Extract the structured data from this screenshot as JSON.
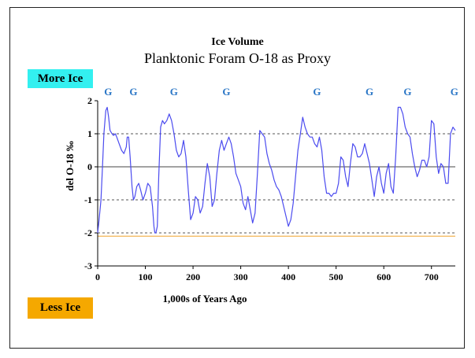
{
  "colors": {
    "more_ice_bg": "#33f0f0",
    "less_ice_bg": "#f5a800",
    "series_line": "#4b4bef",
    "g_marker": "#2a76c6",
    "baseline": "#f4c070"
  },
  "labels": {
    "more_ice": "More Ice",
    "less_ice": "Less Ice"
  },
  "chart_data": {
    "type": "line",
    "title": "Ice Volume",
    "subtitle": "Planktonic Foram O-18 as Proxy",
    "xlabel": "1,000s of Years Ago",
    "ylabel": "del O-18 ‰",
    "xlim": [
      0,
      750
    ],
    "ylim": [
      -3,
      2
    ],
    "xticks": [
      "0",
      "100",
      "200",
      "300",
      "400",
      "500",
      "600",
      "700"
    ],
    "yticks": [
      "2",
      "1",
      "0",
      "-1",
      "-2",
      "-3"
    ],
    "grid": "dashed horizontal at 1, -1, -2",
    "zero_line": 0,
    "reference_line": -2.1,
    "glacial_markers": {
      "label": "G",
      "x": [
        22,
        75,
        160,
        270,
        460,
        570,
        650,
        748
      ]
    },
    "series": [
      {
        "x": [
          0,
          3,
          7,
          10,
          13,
          17,
          20,
          23,
          26,
          30,
          33,
          37,
          40,
          45,
          50,
          55,
          60,
          62,
          65,
          68,
          72,
          75,
          78,
          82,
          86,
          90,
          95,
          100,
          105,
          110,
          115,
          118,
          120,
          122,
          125,
          128,
          132,
          136,
          140,
          145,
          150,
          155,
          160,
          165,
          170,
          175,
          180,
          185,
          190,
          195,
          200,
          205,
          210,
          215,
          220,
          225,
          230,
          235,
          240,
          245,
          250,
          255,
          260,
          265,
          270,
          275,
          280,
          285,
          290,
          295,
          300,
          305,
          310,
          315,
          320,
          325,
          330,
          335,
          340,
          345,
          350,
          355,
          360,
          365,
          370,
          375,
          380,
          385,
          390,
          395,
          400,
          405,
          410,
          415,
          420,
          425,
          430,
          435,
          440,
          445,
          450,
          455,
          460,
          465,
          470,
          475,
          480,
          485,
          490,
          495,
          500,
          505,
          510,
          515,
          520,
          525,
          530,
          535,
          540,
          545,
          550,
          555,
          560,
          565,
          570,
          575,
          580,
          585,
          590,
          595,
          600,
          605,
          610,
          615,
          620,
          625,
          630,
          635,
          640,
          645,
          650,
          655,
          660,
          665,
          670,
          675,
          680,
          685,
          690,
          695,
          700,
          705,
          710,
          715,
          720,
          725,
          730,
          735,
          740,
          745,
          750
        ],
        "values": [
          -2.0,
          -1.6,
          -1.0,
          0.0,
          1.0,
          1.7,
          1.8,
          1.5,
          1.1,
          1.0,
          0.95,
          1.0,
          0.9,
          0.7,
          0.5,
          0.4,
          0.6,
          0.9,
          0.9,
          0.3,
          -0.6,
          -1.0,
          -0.9,
          -0.6,
          -0.5,
          -0.7,
          -1.0,
          -0.8,
          -0.5,
          -0.6,
          -1.2,
          -1.8,
          -2.0,
          -2.0,
          -1.8,
          -0.3,
          1.2,
          1.4,
          1.3,
          1.4,
          1.6,
          1.4,
          1.0,
          0.5,
          0.3,
          0.4,
          0.8,
          0.3,
          -0.7,
          -1.6,
          -1.4,
          -0.9,
          -1.0,
          -1.4,
          -1.2,
          -0.5,
          0.1,
          -0.3,
          -1.2,
          -1.0,
          -0.2,
          0.5,
          0.8,
          0.5,
          0.7,
          0.9,
          0.7,
          0.3,
          -0.2,
          -0.4,
          -0.6,
          -1.1,
          -1.3,
          -0.9,
          -1.3,
          -1.7,
          -1.4,
          -0.2,
          1.1,
          1.0,
          0.9,
          0.4,
          0.1,
          -0.1,
          -0.4,
          -0.6,
          -0.7,
          -0.9,
          -1.2,
          -1.5,
          -1.8,
          -1.6,
          -1.1,
          -0.3,
          0.5,
          1.0,
          1.5,
          1.2,
          1.0,
          0.9,
          0.9,
          0.7,
          0.6,
          0.9,
          0.5,
          -0.3,
          -0.8,
          -0.8,
          -0.9,
          -0.8,
          -0.8,
          -0.5,
          0.3,
          0.2,
          -0.3,
          -0.6,
          0.1,
          0.7,
          0.6,
          0.3,
          0.3,
          0.4,
          0.7,
          0.4,
          0.1,
          -0.4,
          -0.9,
          -0.3,
          0.0,
          -0.5,
          -0.8,
          -0.2,
          0.1,
          -0.6,
          -0.8,
          0.3,
          1.8,
          1.8,
          1.6,
          1.2,
          1.0,
          0.9,
          0.4,
          0.0,
          -0.3,
          -0.1,
          0.2,
          0.2,
          0.0,
          0.3,
          1.4,
          1.3,
          0.3,
          -0.2,
          0.1,
          0.0,
          -0.5,
          -0.5,
          1.0,
          1.2,
          1.1
        ]
      }
    ]
  }
}
